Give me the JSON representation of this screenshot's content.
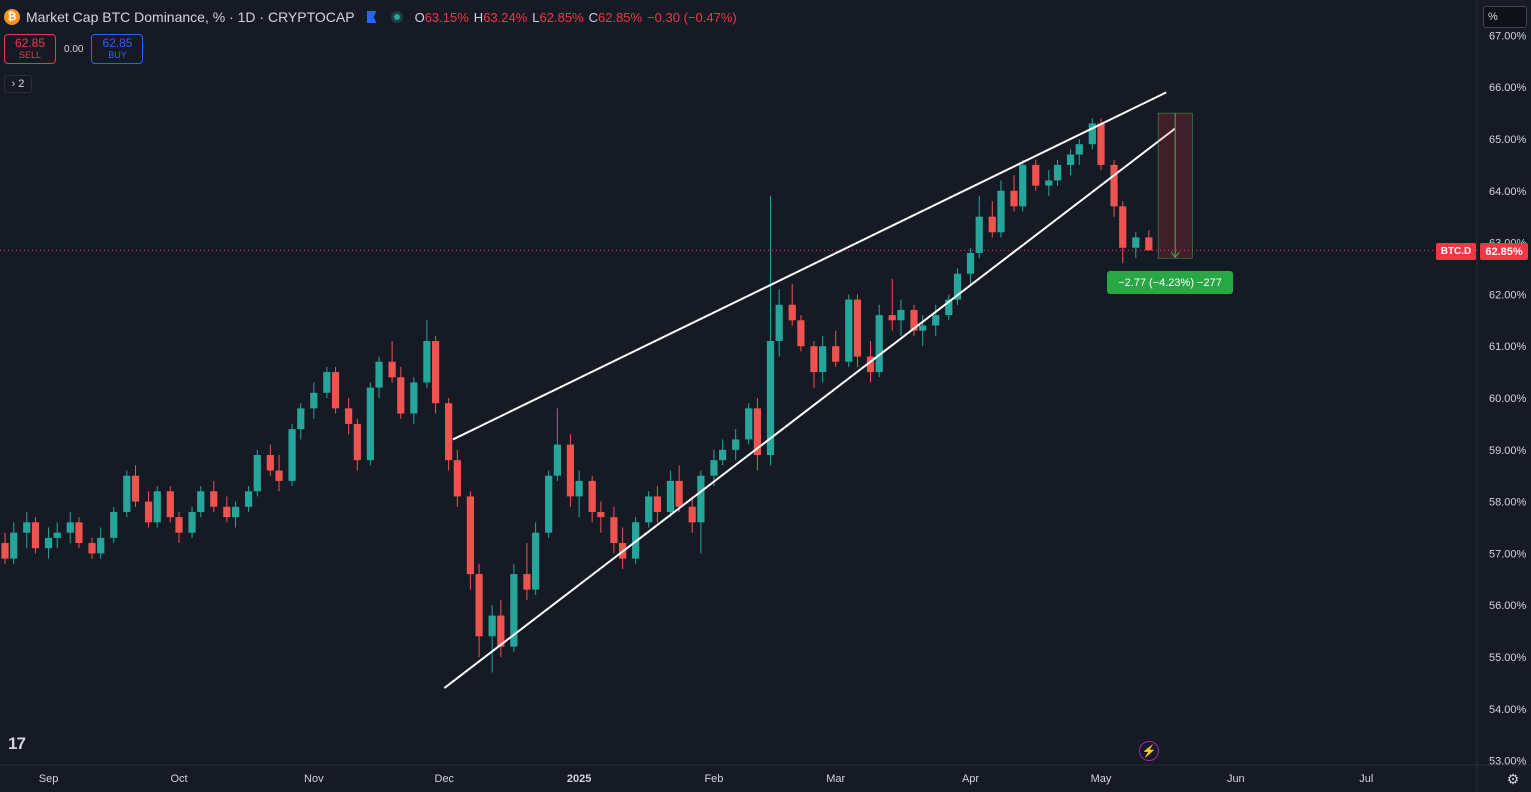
{
  "header": {
    "symbol_title": "Market Cap BTC Dominance, % · 1D · CRYPTOCAP",
    "logo_text": "₿",
    "open_label": "O",
    "open": "63.15%",
    "high_label": "H",
    "high": "63.24%",
    "low_label": "L",
    "low": "62.85%",
    "close_label": "C",
    "close": "62.85%",
    "change": "−0.30 (−0.47%)"
  },
  "trade": {
    "sell_price": "62.85",
    "sell_label": "SELL",
    "spread": "0.00",
    "buy_price": "62.85",
    "buy_label": "BUY"
  },
  "indicators_toggle": {
    "count": "2",
    "chevron": "›"
  },
  "scale_mode": "%",
  "price_labels": {
    "symbol": "BTC.D",
    "last": "62.85%"
  },
  "measure_label": "−2.77 (−4.23%) −277",
  "icons": {
    "logo": "tradingview-logo",
    "bolt": "lightning-icon",
    "settings": "gear-icon"
  },
  "tv_logo_text": "17",
  "colors": {
    "up": "#26a69a",
    "down": "#ef5350",
    "bg": "#161a25",
    "accent": "#2962ff",
    "last_price": "#f23645",
    "measure": "#28a745"
  },
  "chart_data": {
    "type": "candlestick",
    "y_unit": "%",
    "ylim": [
      52.9,
      67.2
    ],
    "y_ticks": [
      "53.00%",
      "54.00%",
      "55.00%",
      "56.00%",
      "57.00%",
      "58.00%",
      "59.00%",
      "60.00%",
      "61.00%",
      "62.00%",
      "63.00%",
      "64.00%",
      "65.00%",
      "66.00%",
      "67.00%"
    ],
    "x_ticks": [
      "Sep",
      "Oct",
      "Nov",
      "Dec",
      "2025",
      "Feb",
      "Mar",
      "Apr",
      "May",
      "Jun",
      "Jul"
    ],
    "x_range": [
      "2024-08-22",
      "2025-07-20"
    ],
    "last_price": 62.85,
    "candles_ohlc": [
      [
        57.2,
        57.4,
        56.8,
        56.9
      ],
      [
        56.9,
        57.6,
        56.8,
        57.4
      ],
      [
        57.4,
        57.8,
        57.1,
        57.6
      ],
      [
        57.6,
        57.7,
        57.0,
        57.1
      ],
      [
        57.1,
        57.5,
        56.9,
        57.3
      ],
      [
        57.3,
        57.6,
        57.1,
        57.4
      ],
      [
        57.4,
        57.8,
        57.2,
        57.6
      ],
      [
        57.6,
        57.7,
        57.1,
        57.2
      ],
      [
        57.2,
        57.3,
        56.9,
        57.0
      ],
      [
        57.0,
        57.5,
        56.9,
        57.3
      ],
      [
        57.3,
        57.9,
        57.2,
        57.8
      ],
      [
        57.8,
        58.6,
        57.7,
        58.5
      ],
      [
        58.5,
        58.7,
        57.9,
        58.0
      ],
      [
        58.0,
        58.2,
        57.5,
        57.6
      ],
      [
        57.6,
        58.3,
        57.5,
        58.2
      ],
      [
        58.2,
        58.3,
        57.6,
        57.7
      ],
      [
        57.7,
        57.8,
        57.2,
        57.4
      ],
      [
        57.4,
        57.9,
        57.3,
        57.8
      ],
      [
        57.8,
        58.3,
        57.7,
        58.2
      ],
      [
        58.2,
        58.4,
        57.8,
        57.9
      ],
      [
        57.9,
        58.1,
        57.6,
        57.7
      ],
      [
        57.7,
        58.0,
        57.5,
        57.9
      ],
      [
        57.9,
        58.3,
        57.8,
        58.2
      ],
      [
        58.2,
        59.0,
        58.1,
        58.9
      ],
      [
        58.9,
        59.1,
        58.5,
        58.6
      ],
      [
        58.6,
        58.9,
        58.2,
        58.4
      ],
      [
        58.4,
        59.5,
        58.3,
        59.4
      ],
      [
        59.4,
        59.9,
        59.2,
        59.8
      ],
      [
        59.8,
        60.3,
        59.6,
        60.1
      ],
      [
        60.1,
        60.6,
        60.0,
        60.5
      ],
      [
        60.5,
        60.6,
        59.7,
        59.8
      ],
      [
        59.8,
        60.0,
        59.3,
        59.5
      ],
      [
        59.5,
        59.6,
        58.6,
        58.8
      ],
      [
        58.8,
        60.3,
        58.7,
        60.2
      ],
      [
        60.2,
        60.8,
        60.0,
        60.7
      ],
      [
        60.7,
        61.1,
        60.3,
        60.4
      ],
      [
        60.4,
        60.6,
        59.6,
        59.7
      ],
      [
        59.7,
        60.4,
        59.5,
        60.3
      ],
      [
        60.3,
        61.5,
        60.2,
        61.1
      ],
      [
        61.1,
        61.2,
        59.7,
        59.9
      ],
      [
        59.9,
        60.0,
        58.6,
        58.8
      ],
      [
        58.8,
        59.0,
        57.9,
        58.1
      ],
      [
        58.1,
        58.2,
        56.3,
        56.6
      ],
      [
        56.6,
        56.8,
        55.0,
        55.4
      ],
      [
        55.4,
        56.0,
        54.7,
        55.8
      ],
      [
        55.8,
        56.1,
        55.0,
        55.2
      ],
      [
        55.2,
        56.8,
        55.1,
        56.6
      ],
      [
        56.6,
        57.2,
        56.1,
        56.3
      ],
      [
        56.3,
        57.6,
        56.2,
        57.4
      ],
      [
        57.4,
        58.6,
        57.3,
        58.5
      ],
      [
        58.5,
        59.8,
        58.4,
        59.1
      ],
      [
        59.1,
        59.3,
        57.9,
        58.1
      ],
      [
        58.1,
        58.6,
        57.7,
        58.4
      ],
      [
        58.4,
        58.5,
        57.6,
        57.8
      ],
      [
        57.8,
        58.0,
        57.4,
        57.7
      ],
      [
        57.7,
        57.9,
        57.0,
        57.2
      ],
      [
        57.2,
        57.5,
        56.7,
        56.9
      ],
      [
        56.9,
        57.7,
        56.8,
        57.6
      ],
      [
        57.6,
        58.2,
        57.5,
        58.1
      ],
      [
        58.1,
        58.3,
        57.6,
        57.8
      ],
      [
        57.8,
        58.6,
        57.7,
        58.4
      ],
      [
        58.4,
        58.7,
        57.8,
        57.9
      ],
      [
        57.9,
        58.1,
        57.4,
        57.6
      ],
      [
        57.6,
        58.6,
        57.0,
        58.5
      ],
      [
        58.5,
        59.0,
        58.3,
        58.8
      ],
      [
        58.8,
        59.2,
        58.7,
        59.0
      ],
      [
        59.0,
        59.4,
        58.8,
        59.2
      ],
      [
        59.2,
        59.9,
        59.1,
        59.8
      ],
      [
        59.8,
        60.0,
        58.6,
        58.9
      ],
      [
        58.9,
        63.9,
        58.7,
        61.1
      ],
      [
        61.1,
        62.1,
        60.8,
        61.8
      ],
      [
        61.8,
        62.2,
        61.4,
        61.5
      ],
      [
        61.5,
        61.6,
        60.9,
        61.0
      ],
      [
        61.0,
        61.1,
        60.2,
        60.5
      ],
      [
        60.5,
        61.2,
        60.3,
        61.0
      ],
      [
        61.0,
        61.3,
        60.6,
        60.7
      ],
      [
        60.7,
        62.0,
        60.6,
        61.9
      ],
      [
        61.9,
        62.0,
        60.6,
        60.8
      ],
      [
        60.8,
        61.1,
        60.3,
        60.5
      ],
      [
        60.5,
        61.8,
        60.4,
        61.6
      ],
      [
        61.6,
        62.3,
        61.3,
        61.5
      ],
      [
        61.5,
        61.9,
        61.2,
        61.7
      ],
      [
        61.7,
        61.8,
        61.2,
        61.3
      ],
      [
        61.3,
        61.6,
        61.0,
        61.4
      ],
      [
        61.4,
        61.8,
        61.2,
        61.6
      ],
      [
        61.6,
        62.0,
        61.5,
        61.9
      ],
      [
        61.9,
        62.5,
        61.8,
        62.4
      ],
      [
        62.4,
        62.9,
        62.2,
        62.8
      ],
      [
        62.8,
        63.9,
        62.7,
        63.5
      ],
      [
        63.5,
        63.8,
        63.1,
        63.2
      ],
      [
        63.2,
        64.2,
        63.1,
        64.0
      ],
      [
        64.0,
        64.3,
        63.6,
        63.7
      ],
      [
        63.7,
        64.6,
        63.6,
        64.5
      ],
      [
        64.5,
        64.6,
        64.0,
        64.1
      ],
      [
        64.1,
        64.4,
        63.9,
        64.2
      ],
      [
        64.2,
        64.6,
        64.1,
        64.5
      ],
      [
        64.5,
        64.8,
        64.3,
        64.7
      ],
      [
        64.7,
        65.0,
        64.5,
        64.9
      ],
      [
        64.9,
        65.4,
        64.8,
        65.3
      ],
      [
        65.3,
        65.4,
        64.4,
        64.5
      ],
      [
        64.5,
        64.6,
        63.5,
        63.7
      ],
      [
        63.7,
        63.8,
        62.6,
        62.9
      ],
      [
        62.9,
        63.2,
        62.7,
        63.1
      ],
      [
        63.1,
        63.24,
        62.85,
        62.85
      ]
    ],
    "trendlines": [
      {
        "name": "upper-wedge-line",
        "from": [
          "2024-12-03",
          59.2
        ],
        "to": [
          "2025-05-16",
          65.9
        ]
      },
      {
        "name": "lower-wedge-line",
        "from": [
          "2024-12-01",
          54.4
        ],
        "to": [
          "2025-05-18",
          65.2
        ]
      }
    ],
    "measure": {
      "from": [
        "2025-05-10",
        65.5
      ],
      "to": [
        "2025-05-16",
        62.7
      ],
      "change": -2.77,
      "change_pct": -4.23,
      "ticks": -277
    }
  }
}
